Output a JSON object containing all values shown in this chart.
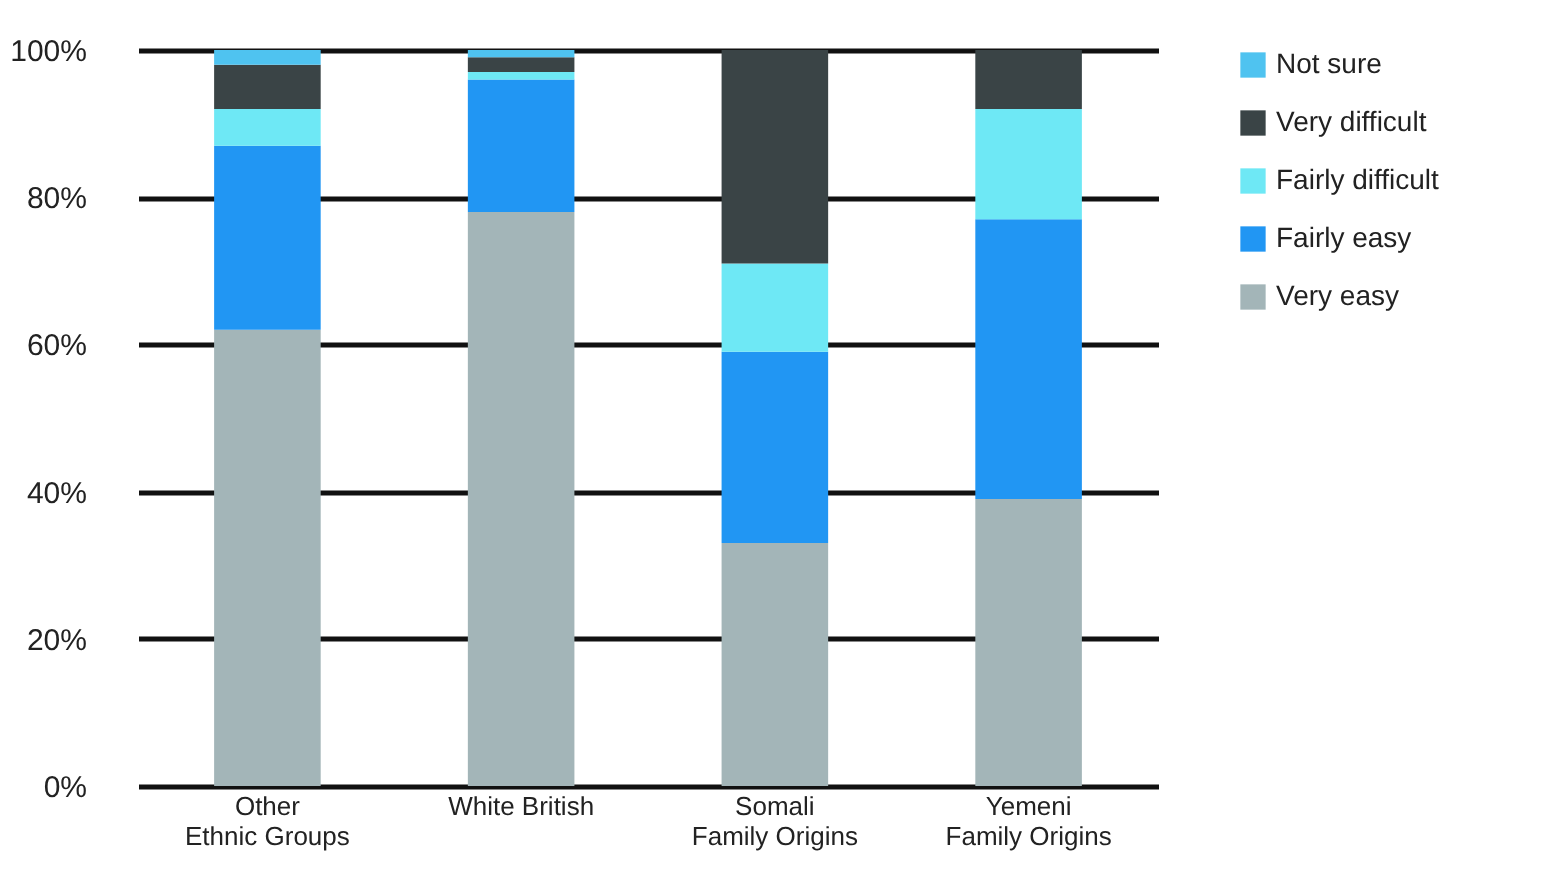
{
  "chart_data": {
    "type": "bar",
    "stacked": true,
    "categories": [
      "Other Ethnic Groups",
      "White British",
      "Somali Family Origins",
      "Yemeni Family Origins"
    ],
    "series": [
      {
        "name": "Very easy",
        "color": "#a3b5b8",
        "values": [
          62,
          78,
          33,
          39
        ]
      },
      {
        "name": "Fairly easy",
        "color": "#2196f3",
        "values": [
          25,
          18,
          26,
          38
        ]
      },
      {
        "name": "Fairly difficult",
        "color": "#6ee8f5",
        "values": [
          5,
          1,
          12,
          15
        ]
      },
      {
        "name": "Very difficult",
        "color": "#3a4446",
        "values": [
          6,
          2,
          29,
          8
        ]
      },
      {
        "name": "Not sure",
        "color": "#4fc3f0",
        "values": [
          2,
          1,
          0,
          0
        ]
      }
    ],
    "ylim": [
      0,
      100
    ],
    "yticks": [
      {
        "value": 0,
        "label": "0%"
      },
      {
        "value": 20,
        "label": "20%"
      },
      {
        "value": 40,
        "label": "40%"
      },
      {
        "value": 60,
        "label": "60%"
      },
      {
        "value": 80,
        "label": "80%"
      },
      {
        "value": 100,
        "label": "100%"
      }
    ],
    "grid": "y",
    "legend": "right"
  }
}
